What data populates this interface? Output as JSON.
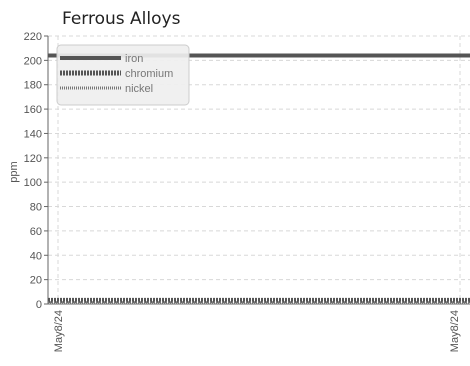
{
  "chart_data": {
    "type": "line",
    "title": "Ferrous Alloys",
    "xlabel": "",
    "ylabel": "ppm",
    "ylim": [
      0,
      220
    ],
    "yticks": [
      0,
      20,
      40,
      60,
      80,
      100,
      120,
      140,
      160,
      180,
      200,
      220
    ],
    "x": [
      "May8/24",
      "May8/24"
    ],
    "grid": true,
    "legend_position": "top-left",
    "series": [
      {
        "name": "iron",
        "values": [
          204,
          204
        ],
        "color": "#555555",
        "style": "solid"
      },
      {
        "name": "chromium",
        "values": [
          3,
          3
        ],
        "color": "#555555",
        "style": "dashed"
      },
      {
        "name": "nickel",
        "values": [
          1,
          1
        ],
        "color": "#777777",
        "style": "dotted"
      }
    ]
  }
}
